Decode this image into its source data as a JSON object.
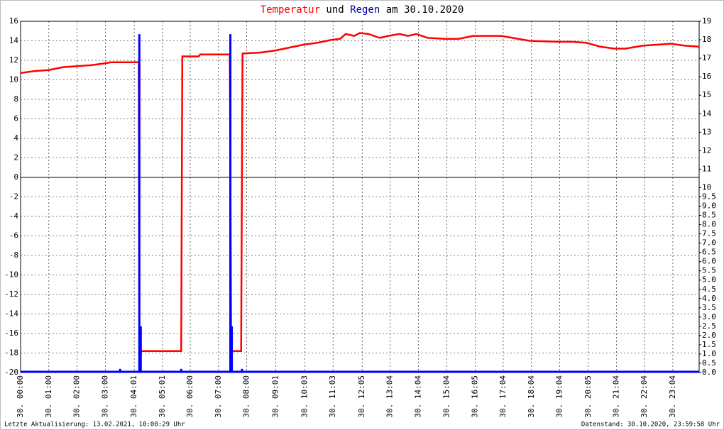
{
  "chart_data": {
    "type": "line",
    "title_join": "und",
    "title_suffix": "am 30.10.2020",
    "footer_left": "Letzte Aktualisierung: 13.02.2021, 10:08:29 Uhr",
    "footer_right": "Datenstand: 30.10.2020, 23:59:58 Uhr",
    "xlim": [
      0,
      24
    ],
    "xticks": [
      {
        "value": 0,
        "label": "30. 00:00"
      },
      {
        "value": 1,
        "label": "30. 01:00"
      },
      {
        "value": 2,
        "label": "30. 02:00"
      },
      {
        "value": 3,
        "label": "30. 03:00"
      },
      {
        "value": 4.02,
        "label": "30. 04:01"
      },
      {
        "value": 5.02,
        "label": "30. 05:01"
      },
      {
        "value": 6,
        "label": "30. 06:00"
      },
      {
        "value": 7,
        "label": "30. 07:00"
      },
      {
        "value": 8,
        "label": "30. 08:00"
      },
      {
        "value": 9.02,
        "label": "30. 09:01"
      },
      {
        "value": 10.05,
        "label": "30. 10:03"
      },
      {
        "value": 11.05,
        "label": "30. 11:03"
      },
      {
        "value": 12.08,
        "label": "30. 12:05"
      },
      {
        "value": 13.07,
        "label": "30. 13:04"
      },
      {
        "value": 14.07,
        "label": "30. 14:04"
      },
      {
        "value": 15.07,
        "label": "30. 15:04"
      },
      {
        "value": 16.08,
        "label": "30. 16:05"
      },
      {
        "value": 17.07,
        "label": "30. 17:04"
      },
      {
        "value": 18.07,
        "label": "30. 18:04"
      },
      {
        "value": 19.07,
        "label": "30. 19:04"
      },
      {
        "value": 20.08,
        "label": "30. 20:05"
      },
      {
        "value": 21.07,
        "label": "30. 21:04"
      },
      {
        "value": 22.07,
        "label": "30. 22:04"
      },
      {
        "value": 23.07,
        "label": "30. 23:04"
      }
    ],
    "ylim": [
      -20,
      16
    ],
    "yticks": [
      -20,
      -18,
      -16,
      -14,
      -12,
      -10,
      -8,
      -6,
      -4,
      -2,
      0,
      2,
      4,
      6,
      8,
      10,
      12,
      14,
      16
    ],
    "y2lim": [
      0,
      19
    ],
    "y2ticks": [
      {
        "value": 0,
        "label": "0.0"
      },
      0.5,
      {
        "value": 1,
        "label": "1.0"
      },
      1.5,
      {
        "value": 2,
        "label": "2.0"
      },
      2.5,
      {
        "value": 3,
        "label": "3.0"
      },
      3.5,
      {
        "value": 4,
        "label": "4.0"
      },
      4.5,
      {
        "value": 5,
        "label": "5.0"
      },
      5.5,
      {
        "value": 6,
        "label": "6.0"
      },
      6.5,
      {
        "value": 7,
        "label": "7.0"
      },
      7.5,
      {
        "value": 8,
        "label": "8.0"
      },
      8.5,
      {
        "value": 9,
        "label": "9.0"
      },
      9.5,
      10,
      11,
      12,
      13,
      14,
      15,
      16,
      17,
      18,
      19
    ],
    "grid": true,
    "series": [
      {
        "name": "Temperatur",
        "color": "#ff0000",
        "x": [
          0,
          0.5,
          1,
          1.5,
          2,
          2.5,
          3,
          3.2,
          4.18,
          4.2,
          5.68,
          5.72,
          6.3,
          6.35,
          7.4,
          7.45,
          7.8,
          7.85,
          8.5,
          9,
          9.5,
          10,
          10.5,
          11,
          11.3,
          11.5,
          11.8,
          12,
          12.3,
          12.7,
          13,
          13.4,
          13.7,
          14,
          14.4,
          15,
          15.5,
          16,
          17,
          17.6,
          18,
          19,
          19.5,
          20,
          20.5,
          21,
          21.4,
          22,
          22.5,
          23,
          23.5,
          24
        ],
        "values": [
          10.7,
          10.9,
          11.0,
          11.3,
          11.4,
          11.5,
          11.7,
          11.8,
          11.8,
          -17.8,
          -17.8,
          12.4,
          12.4,
          12.6,
          12.6,
          -17.8,
          -17.8,
          12.7,
          12.8,
          13.0,
          13.3,
          13.6,
          13.8,
          14.1,
          14.2,
          14.7,
          14.5,
          14.8,
          14.7,
          14.3,
          14.5,
          14.7,
          14.5,
          14.7,
          14.3,
          14.2,
          14.2,
          14.5,
          14.5,
          14.2,
          14.0,
          13.9,
          13.9,
          13.8,
          13.4,
          13.2,
          13.2,
          13.5,
          13.6,
          13.7,
          13.5,
          13.4
        ]
      },
      {
        "name": "Regen",
        "color": "#0000ff",
        "axis": "y2",
        "x": [
          3.52,
          4.2,
          4.25,
          5.68,
          7.42,
          7.47,
          7.83
        ],
        "values": [
          0.2,
          18.3,
          2.5,
          0.2,
          18.3,
          2.5,
          0.2
        ]
      }
    ]
  }
}
